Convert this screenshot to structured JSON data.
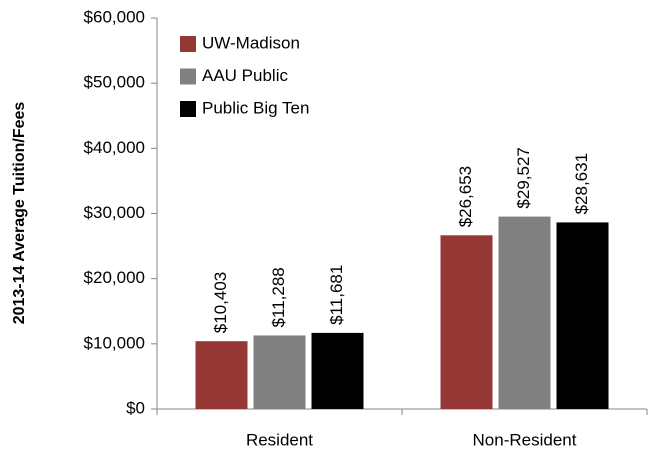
{
  "chart_data": {
    "type": "bar",
    "y_label": "2013-14 Average Tuition/Fees",
    "categories": [
      "Resident",
      "Non-Resident"
    ],
    "series": [
      {
        "name": "UW-Madison",
        "color": "#953735",
        "values": [
          10403,
          26653
        ],
        "value_labels": [
          "$10,403",
          "$26,653"
        ]
      },
      {
        "name": "AAU Public",
        "color": "#808080",
        "values": [
          11288,
          29527
        ],
        "value_labels": [
          "$11,288",
          "$29,527"
        ]
      },
      {
        "name": "Public Big Ten",
        "color": "#000000",
        "values": [
          11681,
          28631
        ],
        "value_labels": [
          "$11,681",
          "$28,631"
        ]
      }
    ],
    "ylim": [
      0,
      60000
    ],
    "yticks": [
      {
        "value": 0,
        "label": "$0"
      },
      {
        "value": 10000,
        "label": "$10,000"
      },
      {
        "value": 20000,
        "label": "$20,000"
      },
      {
        "value": 30000,
        "label": "$30,000"
      },
      {
        "value": 40000,
        "label": "$40,000"
      },
      {
        "value": 50000,
        "label": "$50,000"
      },
      {
        "value": 60000,
        "label": "$60,000"
      }
    ],
    "legend": "upper left"
  }
}
